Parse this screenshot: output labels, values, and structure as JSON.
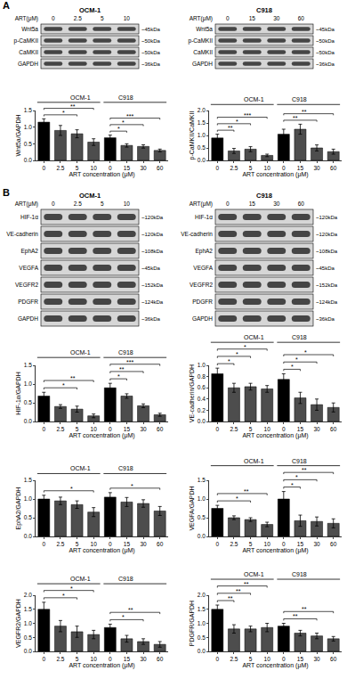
{
  "panels": [
    {
      "label": "A",
      "blots": [
        {
          "cell": "OCM-1",
          "treatment": "ART(μM)",
          "lanes": [
            "0",
            "2.5",
            "5",
            "10"
          ],
          "rows": [
            {
              "protein": "Wnt5a",
              "size": "~45kDa"
            },
            {
              "protein": "p-CaMKII",
              "size": "~50kDa"
            },
            {
              "protein": "CaMKII",
              "size": "~50kDa"
            },
            {
              "protein": "GAPDH",
              "size": "~36kDa"
            }
          ]
        },
        {
          "cell": "C918",
          "treatment": "ART(μM)",
          "lanes": [
            "0",
            "15",
            "30",
            "60"
          ],
          "rows": [
            {
              "protein": "Wnt5a",
              "size": "~45kDa"
            },
            {
              "protein": "p-CaMKII",
              "size": "~50kDa"
            },
            {
              "protein": "CaMKII",
              "size": "~50kDa"
            },
            {
              "protein": "GAPDH",
              "size": "~36kDa"
            }
          ]
        }
      ]
    },
    {
      "label": "B",
      "blots": [
        {
          "cell": "OCM-1",
          "treatment": "ART(μM)",
          "lanes": [
            "0",
            "2.5",
            "5",
            "10"
          ],
          "rows": [
            {
              "protein": "HIF-1α",
              "size": "~120kDa"
            },
            {
              "protein": "VE-cadherin",
              "size": "~120kDa"
            },
            {
              "protein": "EphA2",
              "size": "~108kDa"
            },
            {
              "protein": "VEGFA",
              "size": "~45kDa"
            },
            {
              "protein": "VEGFR2",
              "size": "~152kDa"
            },
            {
              "protein": "PDGFR",
              "size": "~124kDa"
            },
            {
              "protein": "GAPDH",
              "size": "~36kDa"
            }
          ]
        },
        {
          "cell": "C918",
          "treatment": "ART(μM)",
          "lanes": [
            "0",
            "15",
            "30",
            "60"
          ],
          "rows": [
            {
              "protein": "HIF-1α",
              "size": "~120kDa"
            },
            {
              "protein": "VE-cadherin",
              "size": "~120kDa"
            },
            {
              "protein": "EphA2",
              "size": "~108kDa"
            },
            {
              "protein": "VEGFA",
              "size": "~45kDa"
            },
            {
              "protein": "VEGFR2",
              "size": "~152kDa"
            },
            {
              "protein": "PDGFR",
              "size": "~124kDa"
            },
            {
              "protein": "GAPDH",
              "size": "~36kDa"
            }
          ]
        }
      ]
    }
  ],
  "chart_data": [
    {
      "type": "bar",
      "ylabel": "Wnt5a/GAPDH",
      "xlabel": "ART concentration (μM)",
      "categories": [
        "0",
        "2.5",
        "5",
        "10",
        "0",
        "15",
        "30",
        "60"
      ],
      "values": [
        1.15,
        0.9,
        0.8,
        0.55,
        0.68,
        0.45,
        0.42,
        0.3
      ],
      "errors": [
        0.1,
        0.15,
        0.12,
        0.1,
        0.08,
        0.05,
        0.05,
        0.04
      ],
      "colors": [
        "#000000",
        "#4d4d4d",
        "#4d4d4d",
        "#4d4d4d",
        "#000000",
        "#4d4d4d",
        "#4d4d4d",
        "#4d4d4d"
      ],
      "ylim": [
        0,
        1.5
      ],
      "yticks": [
        {
          "value": 0,
          "label": "0.0"
        },
        0.5,
        {
          "value": 1,
          "label": "1.0"
        },
        1.5
      ],
      "grid": false,
      "groups": [
        {
          "label": "OCM-1",
          "first": 0,
          "last": 3
        },
        {
          "label": "C918",
          "first": 4,
          "last": 7
        }
      ],
      "comparisons": [
        {
          "from": 0,
          "to": 2,
          "label": "*"
        },
        {
          "from": 0,
          "to": 3,
          "label": "**"
        },
        {
          "from": 4,
          "to": 5,
          "label": "*"
        },
        {
          "from": 4,
          "to": 6,
          "label": "*"
        },
        {
          "from": 4,
          "to": 7,
          "label": "***"
        }
      ]
    },
    {
      "type": "bar",
      "ylabel": "p-CaMKII/CaMKII",
      "xlabel": "ART concentration (μM)",
      "categories": [
        "0",
        "2.5",
        "5",
        "10",
        "0",
        "15",
        "30",
        "60"
      ],
      "values": [
        0.9,
        0.38,
        0.45,
        0.2,
        1.05,
        1.25,
        0.5,
        0.35
      ],
      "errors": [
        0.15,
        0.1,
        0.1,
        0.05,
        0.2,
        0.2,
        0.12,
        0.1
      ],
      "colors": [
        "#000000",
        "#4d4d4d",
        "#4d4d4d",
        "#4d4d4d",
        "#000000",
        "#4d4d4d",
        "#4d4d4d",
        "#4d4d4d"
      ],
      "ylim": [
        0,
        2
      ],
      "yticks": [
        {
          "value": 0,
          "label": "0.0"
        },
        0.5,
        {
          "value": 1,
          "label": "1.0"
        },
        1.5,
        {
          "value": 2,
          "label": "2.0"
        }
      ],
      "grid": false,
      "groups": [
        {
          "label": "OCM-1",
          "first": 0,
          "last": 3
        },
        {
          "label": "C918",
          "first": 4,
          "last": 7
        }
      ],
      "comparisons": [
        {
          "from": 0,
          "to": 1,
          "label": "**"
        },
        {
          "from": 0,
          "to": 2,
          "label": "*"
        },
        {
          "from": 0,
          "to": 3,
          "label": "***"
        },
        {
          "from": 4,
          "to": 6,
          "label": "**"
        },
        {
          "from": 4,
          "to": 7,
          "label": "**"
        }
      ]
    },
    {
      "type": "bar",
      "ylabel": "HIF-1α/GAPDH",
      "xlabel": "ART concentration (μM)",
      "categories": [
        "0",
        "2.5",
        "5",
        "10",
        "0",
        "15",
        "30",
        "60"
      ],
      "values": [
        0.68,
        0.4,
        0.33,
        0.15,
        0.9,
        0.68,
        0.42,
        0.18
      ],
      "errors": [
        0.1,
        0.05,
        0.08,
        0.05,
        0.12,
        0.06,
        0.05,
        0.04
      ],
      "colors": [
        "#000000",
        "#4d4d4d",
        "#4d4d4d",
        "#4d4d4d",
        "#000000",
        "#4d4d4d",
        "#4d4d4d",
        "#4d4d4d"
      ],
      "ylim": [
        0,
        1.5
      ],
      "yticks": [
        {
          "value": 0,
          "label": "0.0"
        },
        0.5,
        {
          "value": 1,
          "label": "1.0"
        },
        1.5
      ],
      "grid": false,
      "groups": [
        {
          "label": "OCM-1",
          "first": 0,
          "last": 3
        },
        {
          "label": "C918",
          "first": 4,
          "last": 7
        }
      ],
      "comparisons": [
        {
          "from": 0,
          "to": 2,
          "label": "*"
        },
        {
          "from": 0,
          "to": 3,
          "label": "**"
        },
        {
          "from": 4,
          "to": 5,
          "label": "*"
        },
        {
          "from": 4,
          "to": 6,
          "label": "**"
        },
        {
          "from": 4,
          "to": 7,
          "label": "***"
        }
      ]
    },
    {
      "type": "bar",
      "ylabel": "VE-cadherin/GAPDH",
      "xlabel": "ART concentration (μM)",
      "categories": [
        "0",
        "2.5",
        "5",
        "10",
        "0",
        "15",
        "30",
        "60"
      ],
      "values": [
        0.85,
        0.6,
        0.62,
        0.58,
        0.75,
        0.42,
        0.3,
        0.25
      ],
      "errors": [
        0.1,
        0.08,
        0.06,
        0.06,
        0.1,
        0.1,
        0.1,
        0.08
      ],
      "colors": [
        "#000000",
        "#4d4d4d",
        "#4d4d4d",
        "#4d4d4d",
        "#000000",
        "#4d4d4d",
        "#4d4d4d",
        "#4d4d4d"
      ],
      "ylim": [
        0,
        1
      ],
      "yticks": [
        {
          "value": 0,
          "label": "0.0"
        },
        0.2,
        0.4,
        0.6,
        0.8,
        {
          "value": 1,
          "label": "1.0"
        }
      ],
      "grid": false,
      "groups": [
        {
          "label": "OCM-1",
          "first": 0,
          "last": 3
        },
        {
          "label": "C918",
          "first": 4,
          "last": 7
        }
      ],
      "comparisons": [
        {
          "from": 0,
          "to": 1,
          "label": "*"
        },
        {
          "from": 0,
          "to": 2,
          "label": "*"
        },
        {
          "from": 0,
          "to": 3,
          "label": "*"
        },
        {
          "from": 4,
          "to": 5,
          "label": "*"
        },
        {
          "from": 4,
          "to": 6,
          "label": "*"
        },
        {
          "from": 4,
          "to": 7,
          "label": "*"
        }
      ]
    },
    {
      "type": "bar",
      "ylabel": "EphA2/GAPDH",
      "xlabel": "ART concentration (μM)",
      "categories": [
        "0",
        "2.5",
        "5",
        "10",
        "0",
        "15",
        "30",
        "60"
      ],
      "values": [
        1.0,
        0.95,
        0.85,
        0.65,
        1.05,
        0.92,
        0.88,
        0.68
      ],
      "errors": [
        0.1,
        0.1,
        0.1,
        0.12,
        0.12,
        0.12,
        0.1,
        0.12
      ],
      "colors": [
        "#000000",
        "#4d4d4d",
        "#4d4d4d",
        "#4d4d4d",
        "#000000",
        "#4d4d4d",
        "#4d4d4d",
        "#4d4d4d"
      ],
      "ylim": [
        0,
        1.5
      ],
      "yticks": [
        {
          "value": 0,
          "label": "0.0"
        },
        0.5,
        {
          "value": 1,
          "label": "1.0"
        },
        1.5
      ],
      "grid": false,
      "groups": [
        {
          "label": "OCM-1",
          "first": 0,
          "last": 3
        },
        {
          "label": "C918",
          "first": 4,
          "last": 7
        }
      ],
      "comparisons": [
        {
          "from": 0,
          "to": 3,
          "label": "*"
        },
        {
          "from": 4,
          "to": 7,
          "label": "*"
        }
      ]
    },
    {
      "type": "bar",
      "ylabel": "VEGFA/GAPDH",
      "xlabel": "ART concentration (μM)",
      "categories": [
        "0",
        "2.5",
        "5",
        "10",
        "0",
        "15",
        "30",
        "60"
      ],
      "values": [
        0.75,
        0.5,
        0.45,
        0.32,
        1.0,
        0.42,
        0.4,
        0.35
      ],
      "errors": [
        0.08,
        0.05,
        0.05,
        0.06,
        0.2,
        0.15,
        0.12,
        0.12
      ],
      "colors": [
        "#000000",
        "#4d4d4d",
        "#4d4d4d",
        "#4d4d4d",
        "#000000",
        "#4d4d4d",
        "#4d4d4d",
        "#4d4d4d"
      ],
      "ylim": [
        0,
        1.5
      ],
      "yticks": [
        {
          "value": 0,
          "label": "0.0"
        },
        0.5,
        {
          "value": 1,
          "label": "1.0"
        },
        1.5
      ],
      "grid": false,
      "groups": [
        {
          "label": "OCM-1",
          "first": 0,
          "last": 3
        },
        {
          "label": "C918",
          "first": 4,
          "last": 7
        }
      ],
      "comparisons": [
        {
          "from": 0,
          "to": 2,
          "label": "*"
        },
        {
          "from": 0,
          "to": 3,
          "label": "**"
        },
        {
          "from": 4,
          "to": 5,
          "label": "*"
        },
        {
          "from": 4,
          "to": 6,
          "label": "*"
        },
        {
          "from": 4,
          "to": 7,
          "label": "**"
        }
      ]
    },
    {
      "type": "bar",
      "ylabel": "VEGFR2/GAPDH",
      "xlabel": "ART concentration (μM)",
      "categories": [
        "0",
        "2.5",
        "5",
        "10",
        "0",
        "15",
        "30",
        "60"
      ],
      "values": [
        1.5,
        0.9,
        0.7,
        0.6,
        0.85,
        0.45,
        0.35,
        0.25
      ],
      "errors": [
        0.25,
        0.2,
        0.2,
        0.15,
        0.12,
        0.12,
        0.1,
        0.1
      ],
      "colors": [
        "#000000",
        "#4d4d4d",
        "#4d4d4d",
        "#4d4d4d",
        "#000000",
        "#4d4d4d",
        "#4d4d4d",
        "#4d4d4d"
      ],
      "ylim": [
        0,
        2
      ],
      "yticks": [
        {
          "value": 0,
          "label": "0.0"
        },
        0.5,
        {
          "value": 1,
          "label": "1.0"
        },
        1.5,
        {
          "value": 2,
          "label": "2.0"
        }
      ],
      "grid": false,
      "groups": [
        {
          "label": "OCM-1",
          "first": 0,
          "last": 3
        },
        {
          "label": "C918",
          "first": 4,
          "last": 7
        }
      ],
      "comparisons": [
        {
          "from": 0,
          "to": 2,
          "label": "*"
        },
        {
          "from": 0,
          "to": 3,
          "label": "*"
        },
        {
          "from": 4,
          "to": 6,
          "label": "*"
        },
        {
          "from": 4,
          "to": 7,
          "label": "**"
        }
      ]
    },
    {
      "type": "bar",
      "ylabel": "PDGFR/GAPDH",
      "xlabel": "ART concentration (μM)",
      "categories": [
        "0",
        "2.5",
        "5",
        "10",
        "0",
        "15",
        "30",
        "60"
      ],
      "values": [
        1.5,
        0.8,
        0.8,
        0.85,
        0.9,
        0.65,
        0.55,
        0.45
      ],
      "errors": [
        0.15,
        0.15,
        0.1,
        0.15,
        0.1,
        0.1,
        0.1,
        0.08
      ],
      "colors": [
        "#000000",
        "#4d4d4d",
        "#4d4d4d",
        "#4d4d4d",
        "#000000",
        "#4d4d4d",
        "#4d4d4d",
        "#4d4d4d"
      ],
      "ylim": [
        0,
        2
      ],
      "yticks": [
        {
          "value": 0,
          "label": "0.0"
        },
        0.5,
        {
          "value": 1,
          "label": "1.0"
        },
        1.5,
        {
          "value": 2,
          "label": "2.0"
        }
      ],
      "grid": false,
      "groups": [
        {
          "label": "OCM-1",
          "first": 0,
          "last": 3
        },
        {
          "label": "C918",
          "first": 4,
          "last": 7
        }
      ],
      "comparisons": [
        {
          "from": 0,
          "to": 1,
          "label": "**"
        },
        {
          "from": 0,
          "to": 2,
          "label": "**"
        },
        {
          "from": 0,
          "to": 3,
          "label": "**"
        },
        {
          "from": 4,
          "to": 6,
          "label": "**"
        },
        {
          "from": 4,
          "to": 7,
          "label": "**"
        }
      ]
    }
  ]
}
